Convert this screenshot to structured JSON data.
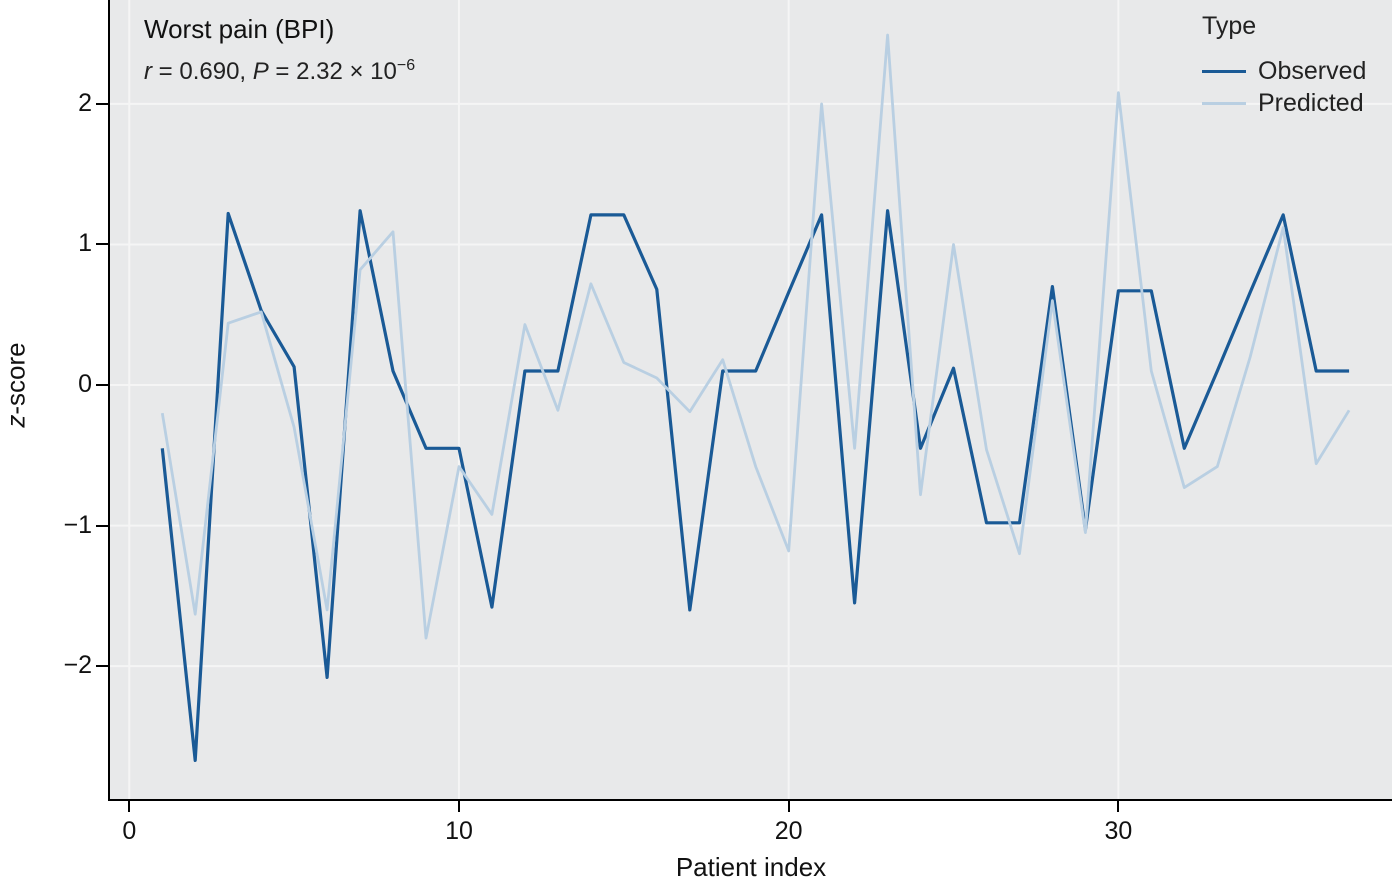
{
  "figure": {
    "title": "Worst pain (BPI)",
    "subtitle": {
      "r_var": "r",
      "r_text": " = 0.690, ",
      "p_var": "P",
      "p_text": " = 2.32 × 10",
      "p_exponent": "−6"
    }
  },
  "legend": {
    "title": "Type",
    "entries": [
      {
        "label": "Observed",
        "color": "#1a5a96"
      },
      {
        "label": "Predicted",
        "color": "#b9cfe2"
      }
    ]
  },
  "axes": {
    "x_label": "Patient index",
    "y_label_italic": "z",
    "y_label_rest": "-score",
    "x_ticks": [
      {
        "value": 0,
        "label": "0"
      },
      {
        "value": 10,
        "label": "10"
      },
      {
        "value": 20,
        "label": "20"
      },
      {
        "value": 30,
        "label": "30"
      }
    ],
    "y_ticks": [
      {
        "value": 2,
        "label": "2"
      },
      {
        "value": 1,
        "label": "1"
      },
      {
        "value": 0,
        "label": "0"
      },
      {
        "value": -1,
        "label": "−1"
      },
      {
        "value": -2,
        "label": "−2"
      }
    ]
  },
  "chart_data": {
    "type": "line",
    "title": "Worst pain (BPI)",
    "annotation": "r = 0.690, P = 2.32 × 10−6",
    "xlabel": "Patient index",
    "ylabel": "z-score",
    "legend_position": "top-right",
    "grid": true,
    "panel_background": "#e8e9ea",
    "gridline_color": "#f5f5f5",
    "xlim": [
      -0.585,
      38.3
    ],
    "ylim": [
      -2.952,
      2.739
    ],
    "x": [
      1,
      2,
      3,
      4,
      5,
      6,
      7,
      8,
      9,
      10,
      11,
      12,
      13,
      14,
      15,
      16,
      17,
      18,
      19,
      20,
      21,
      22,
      23,
      24,
      25,
      26,
      27,
      28,
      29,
      30,
      31,
      32,
      33,
      34,
      35,
      36,
      37
    ],
    "series": [
      {
        "name": "Observed",
        "color": "#1a5a96",
        "width": 3.2,
        "values": [
          -0.45,
          -2.67,
          1.22,
          0.53,
          0.13,
          -2.08,
          1.24,
          0.1,
          -0.45,
          -0.45,
          -1.58,
          0.1,
          0.1,
          1.21,
          1.21,
          0.68,
          -1.6,
          0.1,
          0.1,
          0.66,
          1.21,
          -1.55,
          1.24,
          -0.45,
          0.12,
          -0.98,
          -0.98,
          0.7,
          -1.03,
          0.67,
          0.67,
          -0.45,
          0.1,
          0.66,
          1.21,
          0.1,
          0.1
        ]
      },
      {
        "name": "Predicted",
        "color": "#b9cfe2",
        "width": 2.8,
        "values": [
          -0.2,
          -1.63,
          0.44,
          0.52,
          -0.3,
          -1.6,
          0.82,
          1.09,
          -1.8,
          -0.58,
          -0.92,
          0.43,
          -0.18,
          0.72,
          0.16,
          0.05,
          -0.19,
          0.18,
          -0.58,
          -1.18,
          2.0,
          -0.45,
          2.49,
          -0.78,
          1.0,
          -0.46,
          -1.2,
          0.6,
          -1.05,
          2.08,
          0.1,
          -0.73,
          -0.58,
          0.2,
          1.12,
          -0.56,
          -0.18
        ]
      }
    ]
  }
}
